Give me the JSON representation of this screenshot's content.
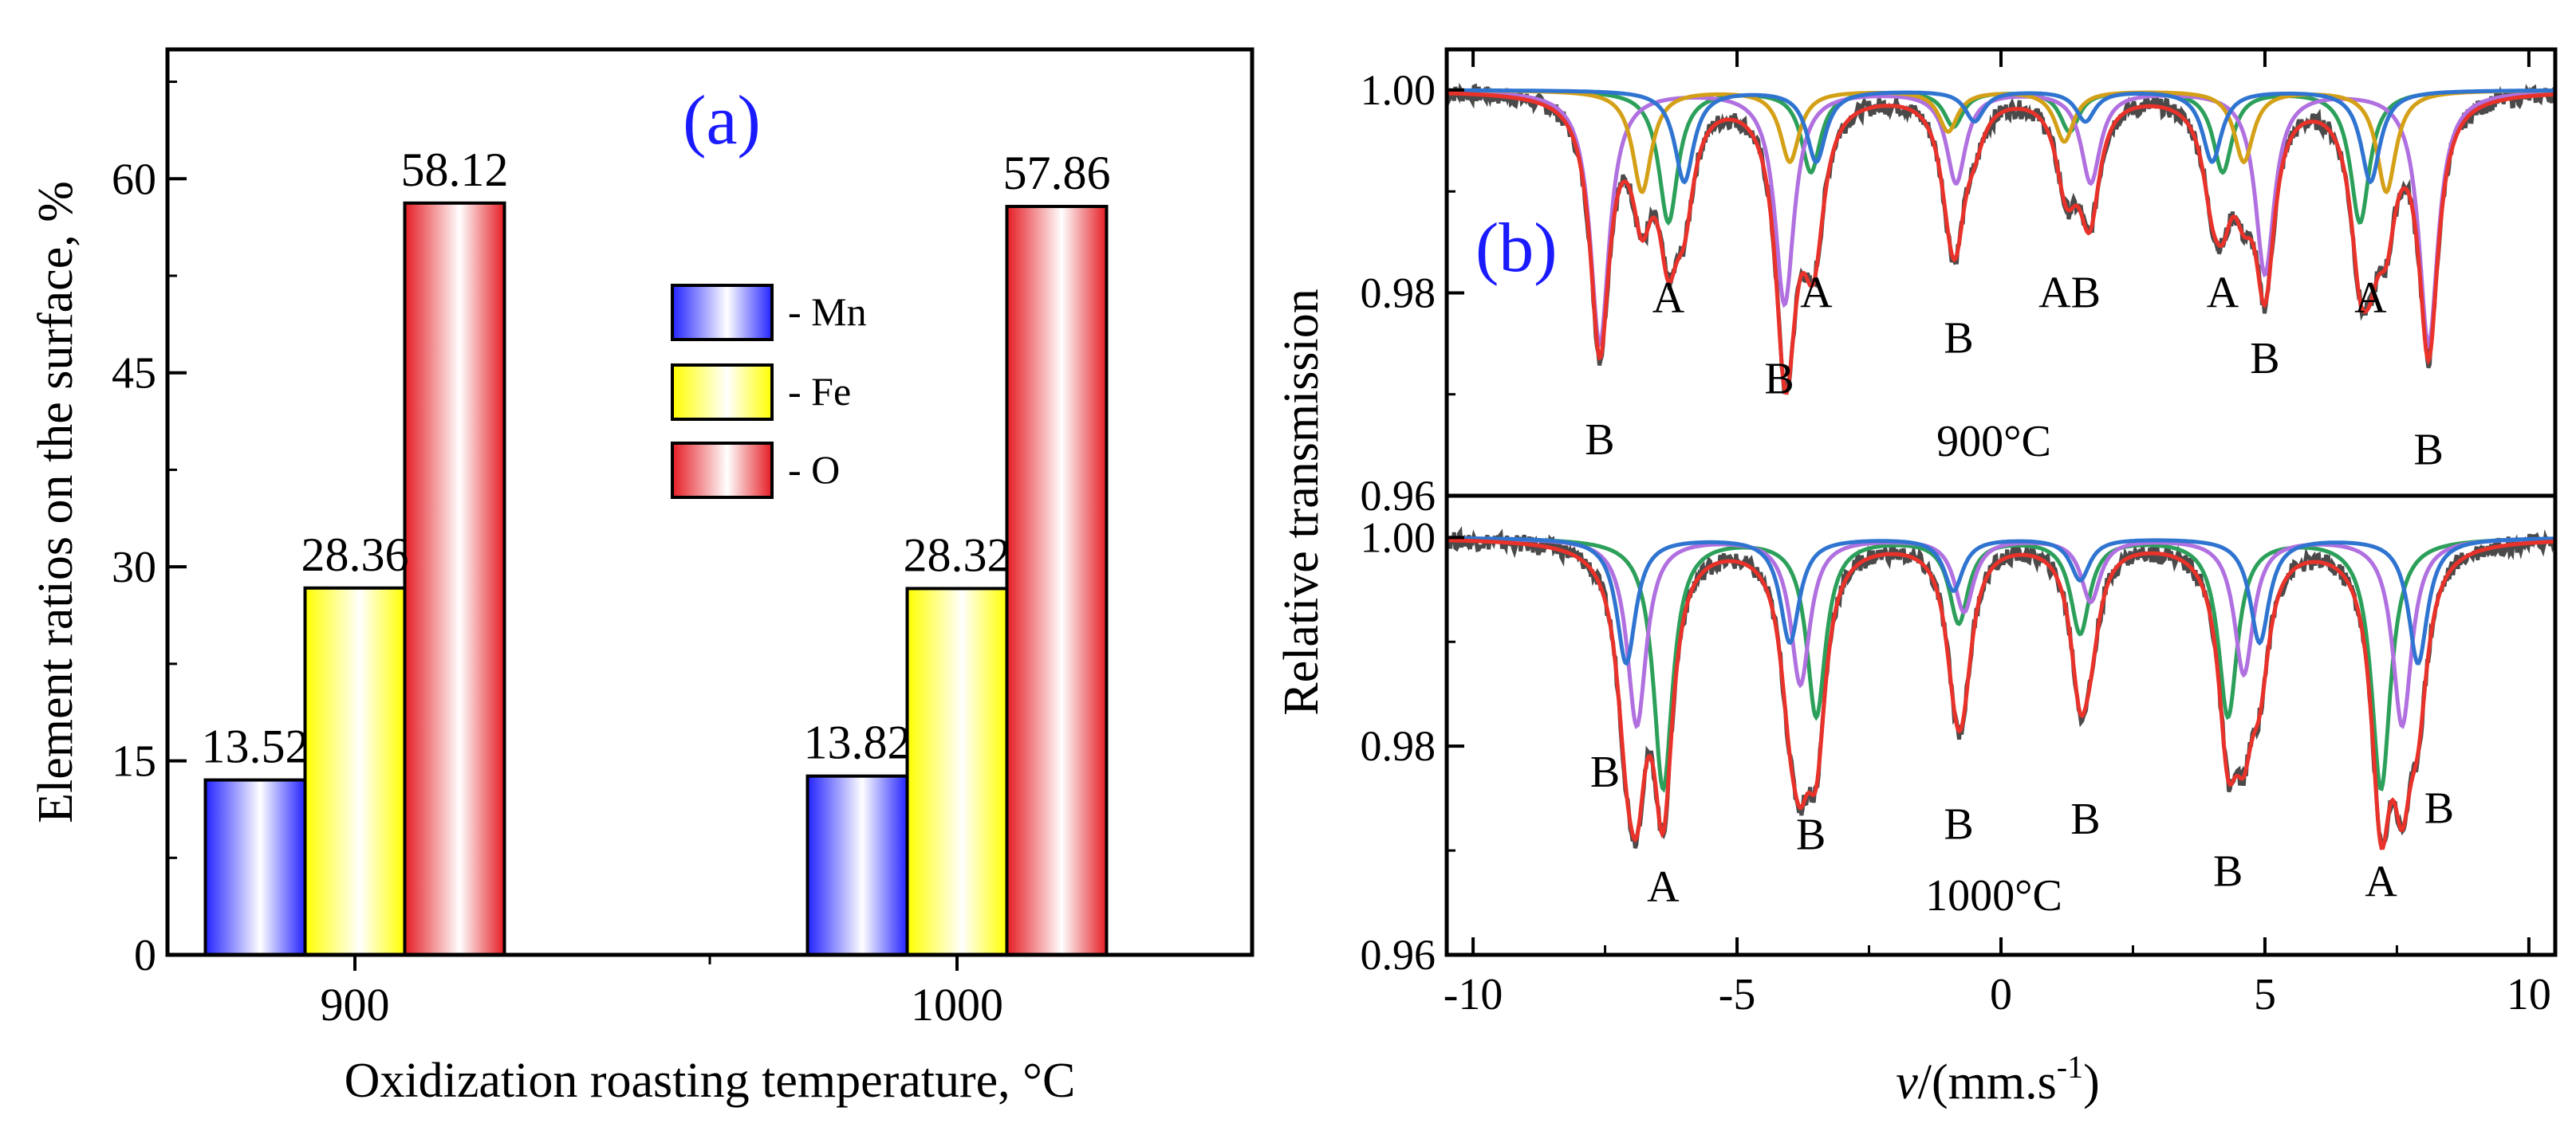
{
  "chart_data": [
    {
      "type": "bar",
      "panel_label": "(a)",
      "categories": [
        "900",
        "1000"
      ],
      "series": [
        {
          "name": "Mn",
          "legend_label": "- Mn",
          "values": [
            13.52,
            13.82
          ],
          "value_labels": [
            "13.52",
            "13.82"
          ],
          "color": "#1a1aff"
        },
        {
          "name": "Fe",
          "legend_label": "- Fe",
          "values": [
            28.36,
            28.32
          ],
          "value_labels": [
            "28.36",
            "28.32"
          ],
          "color": "#ffff00"
        },
        {
          "name": "O",
          "legend_label": "- O",
          "values": [
            58.12,
            57.86
          ],
          "value_labels": [
            "58.12",
            "57.86"
          ],
          "color": "#e51c23"
        }
      ],
      "xlabel": "Oxidization roasting temperature, °C",
      "ylabel": "Element ratios on the surface, %",
      "ylim": [
        0,
        70
      ],
      "yticks": [
        "0",
        "15",
        "30",
        "45",
        "60"
      ],
      "legend_position": "center"
    },
    {
      "type": "line",
      "panel_label": "(b)",
      "xlabel_italic": "v",
      "xlabel_rest": "/(mm.s",
      "xlabel_sup": "-1",
      "xlabel_close": ")",
      "ylabel": "Relative transmission",
      "xlim": [
        -10.5,
        10.5
      ],
      "xticks": [
        "-10",
        "-5",
        "0",
        "5",
        "10"
      ],
      "panels": [
        {
          "name": "900",
          "label": "900°C",
          "ylim": [
            0.96,
            1.004
          ],
          "yticks": [
            "1.00",
            "0.98",
            "0.96"
          ],
          "site_A": {
            "centers": [
              -6.3,
              -3.6,
              -0.9,
              1.3,
              4.2,
              6.8
            ],
            "depths": [
              0.013,
              0.008,
              0.0035,
              0.004,
              0.008,
              0.013
            ],
            "color": "#2ca05a"
          },
          "site_B": {
            "centers": [
              -7.6,
              -4.1,
              -0.85,
              1.7,
              5.0,
              8.1
            ],
            "depths": [
              0.025,
              0.021,
              0.009,
              0.009,
              0.018,
              0.025
            ],
            "color": "#b070e0"
          },
          "site_C": {
            "centers": [
              -6.8,
              -4.0,
              -1.0,
              1.2,
              4.6,
              7.3
            ],
            "depths": [
              0.01,
              0.007,
              0.004,
              0.005,
              0.007,
              0.01
            ],
            "color": "#d4a017"
          },
          "site_D": {
            "centers": [
              -6.0,
              -3.5,
              -0.5,
              1.6,
              4.0,
              7.0
            ],
            "depths": [
              0.009,
              0.007,
              0.003,
              0.003,
              0.007,
              0.009
            ],
            "color": "#2f74d0"
          },
          "peak_labels": [
            {
              "text": "B",
              "x": -7.6,
              "y": 0.9655
            },
            {
              "text": "A",
              "x": -6.3,
              "y": 0.9795
            },
            {
              "text": "B",
              "x": -4.2,
              "y": 0.9715
            },
            {
              "text": "A",
              "x": -3.5,
              "y": 0.98
            },
            {
              "text": "B",
              "x": -0.8,
              "y": 0.9755
            },
            {
              "text": "AB",
              "x": 1.3,
              "y": 0.98
            },
            {
              "text": "A",
              "x": 4.2,
              "y": 0.98
            },
            {
              "text": "B",
              "x": 5.0,
              "y": 0.9735
            },
            {
              "text": "A",
              "x": 7.0,
              "y": 0.9795
            },
            {
              "text": "B",
              "x": 8.1,
              "y": 0.9645
            }
          ]
        },
        {
          "name": "1000",
          "label": "1000°C",
          "ylim": [
            0.96,
            1.004
          ],
          "yticks": [
            "1.00",
            "0.98",
            "0.96"
          ],
          "site_A": {
            "centers": [
              -6.4,
              -3.5,
              -0.8,
              1.5,
              4.3,
              7.2
            ],
            "depths": [
              0.024,
              0.017,
              0.008,
              0.009,
              0.017,
              0.024
            ],
            "color": "#2ca05a"
          },
          "site_B": {
            "centers": [
              -6.9,
              -3.8,
              -0.7,
              1.7,
              4.6,
              7.6
            ],
            "depths": [
              0.018,
              0.014,
              0.007,
              0.006,
              0.013,
              0.018
            ],
            "color": "#b070e0"
          },
          "site_C": {
            "centers": [
              -7.1,
              -4.0,
              -0.9,
              1.5,
              4.9,
              7.9
            ],
            "depths": [
              0.012,
              0.01,
              0.005,
              0.004,
              0.01,
              0.012
            ],
            "color": "#2f74d0"
          },
          "peak_labels": [
            {
              "text": "B",
              "x": -7.5,
              "y": 0.9775
            },
            {
              "text": "A",
              "x": -6.4,
              "y": 0.9665
            },
            {
              "text": "B",
              "x": -3.6,
              "y": 0.9715
            },
            {
              "text": "B",
              "x": -0.8,
              "y": 0.9725
            },
            {
              "text": "B",
              "x": 1.6,
              "y": 0.973
            },
            {
              "text": "B",
              "x": 4.3,
              "y": 0.968
            },
            {
              "text": "A",
              "x": 7.2,
              "y": 0.967
            },
            {
              "text": "B",
              "x": 8.3,
              "y": 0.974
            }
          ]
        }
      ]
    }
  ]
}
